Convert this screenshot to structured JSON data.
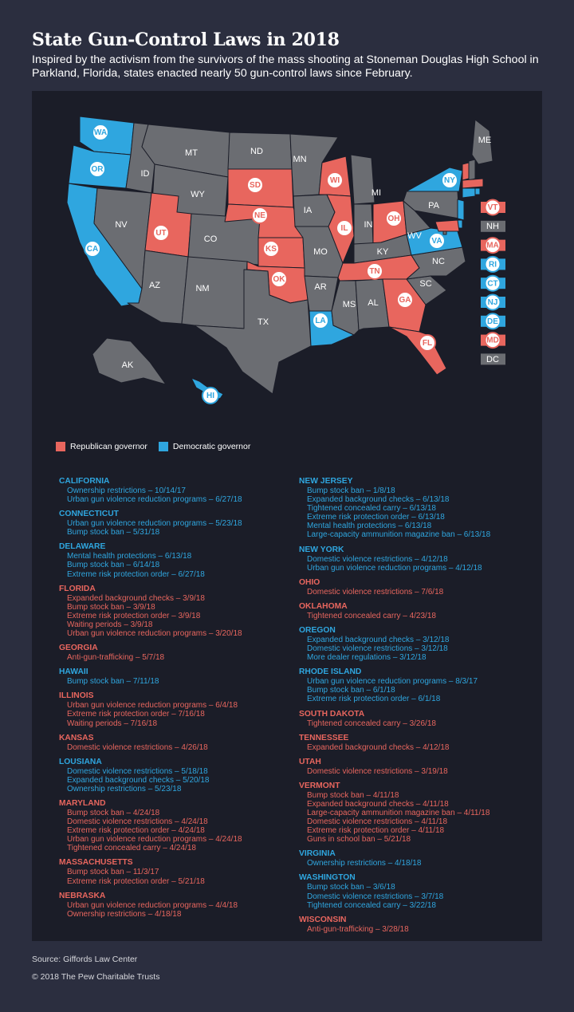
{
  "title": "State Gun-Control Laws in 2018",
  "subtitle": "Inspired by the activism from the survivors of the mass shooting at Stoneman Douglas High School in Parkland, Florida, states enacted nearly 50 gun-control laws since February.",
  "colors": {
    "republican": "#e8665e",
    "democratic": "#2fa6df",
    "no_law": "#6b6d72",
    "panel": "#1b1d28",
    "background": "#2b2e3f"
  },
  "legend": {
    "republican": "Republican governor",
    "democratic": "Democratic governor"
  },
  "map": {
    "states": [
      {
        "abbr": "WA",
        "party": "dem"
      },
      {
        "abbr": "OR",
        "party": "dem"
      },
      {
        "abbr": "CA",
        "party": "dem"
      },
      {
        "abbr": "ID",
        "party": "none"
      },
      {
        "abbr": "MT",
        "party": "none"
      },
      {
        "abbr": "WY",
        "party": "none"
      },
      {
        "abbr": "NV",
        "party": "none"
      },
      {
        "abbr": "UT",
        "party": "rep"
      },
      {
        "abbr": "CO",
        "party": "none"
      },
      {
        "abbr": "AZ",
        "party": "none"
      },
      {
        "abbr": "NM",
        "party": "none"
      },
      {
        "abbr": "ND",
        "party": "none"
      },
      {
        "abbr": "SD",
        "party": "rep"
      },
      {
        "abbr": "NE",
        "party": "rep"
      },
      {
        "abbr": "KS",
        "party": "rep"
      },
      {
        "abbr": "OK",
        "party": "rep"
      },
      {
        "abbr": "TX",
        "party": "none"
      },
      {
        "abbr": "MN",
        "party": "none"
      },
      {
        "abbr": "IA",
        "party": "none"
      },
      {
        "abbr": "MO",
        "party": "none"
      },
      {
        "abbr": "AR",
        "party": "none"
      },
      {
        "abbr": "LA",
        "party": "dem"
      },
      {
        "abbr": "WI",
        "party": "rep"
      },
      {
        "abbr": "IL",
        "party": "rep"
      },
      {
        "abbr": "MI",
        "party": "none"
      },
      {
        "abbr": "IN",
        "party": "none"
      },
      {
        "abbr": "OH",
        "party": "rep"
      },
      {
        "abbr": "KY",
        "party": "none"
      },
      {
        "abbr": "TN",
        "party": "rep"
      },
      {
        "abbr": "MS",
        "party": "none"
      },
      {
        "abbr": "AL",
        "party": "none"
      },
      {
        "abbr": "GA",
        "party": "rep"
      },
      {
        "abbr": "FL",
        "party": "rep"
      },
      {
        "abbr": "SC",
        "party": "none"
      },
      {
        "abbr": "NC",
        "party": "none"
      },
      {
        "abbr": "VA",
        "party": "dem"
      },
      {
        "abbr": "WV",
        "party": "none"
      },
      {
        "abbr": "PA",
        "party": "none"
      },
      {
        "abbr": "NY",
        "party": "dem"
      },
      {
        "abbr": "ME",
        "party": "none"
      },
      {
        "abbr": "AK",
        "party": "none"
      },
      {
        "abbr": "HI",
        "party": "dem"
      }
    ],
    "small_states": [
      {
        "abbr": "VT",
        "party": "rep"
      },
      {
        "abbr": "NH",
        "party": "none"
      },
      {
        "abbr": "MA",
        "party": "rep"
      },
      {
        "abbr": "RI",
        "party": "dem"
      },
      {
        "abbr": "CT",
        "party": "dem"
      },
      {
        "abbr": "NJ",
        "party": "dem"
      },
      {
        "abbr": "DE",
        "party": "dem"
      },
      {
        "abbr": "MD",
        "party": "rep"
      },
      {
        "abbr": "DC",
        "party": "none"
      }
    ]
  },
  "laws_left": [
    {
      "state": "CALIFORNIA",
      "party": "dem",
      "laws": [
        "Ownership restrictions – 10/14/17",
        "Urban gun violence reduction programs – 6/27/18"
      ]
    },
    {
      "state": "CONNECTICUT",
      "party": "dem",
      "laws": [
        "Urban gun violence reduction programs – 5/23/18",
        "Bump stock ban – 5/31/18"
      ]
    },
    {
      "state": "DELAWARE",
      "party": "dem",
      "laws": [
        "Mental health protections – 6/13/18",
        "Bump stock ban – 6/14/18",
        "Extreme risk protection order – 6/27/18"
      ]
    },
    {
      "state": "FLORIDA",
      "party": "rep",
      "laws": [
        "Expanded background checks – 3/9/18",
        "Bump stock ban – 3/9/18",
        "Extreme risk protection order – 3/9/18",
        "Waiting periods – 3/9/18",
        "Urban gun violence reduction programs – 3/20/18"
      ]
    },
    {
      "state": "GEORGIA",
      "party": "rep",
      "laws": [
        "Anti-gun-trafficking – 5/7/18"
      ]
    },
    {
      "state": "HAWAII",
      "party": "dem",
      "laws": [
        "Bump stock ban – 7/11/18"
      ]
    },
    {
      "state": "ILLINOIS",
      "party": "rep",
      "laws": [
        "Urban gun violence reduction programs – 6/4/18",
        "Extreme risk protection order – 7/16/18",
        "Waiting periods – 7/16/18"
      ]
    },
    {
      "state": "KANSAS",
      "party": "rep",
      "laws": [
        "Domestic violence restrictions – 4/26/18"
      ]
    },
    {
      "state": "LOUSIANA",
      "party": "dem",
      "laws": [
        "Domestic violence restrictions – 5/18/18",
        "Expanded background checks – 5/20/18",
        "Ownership restrictions – 5/23/18"
      ]
    },
    {
      "state": "MARYLAND",
      "party": "rep",
      "laws": [
        "Bump stock ban – 4/24/18",
        "Domestic violence restrictions – 4/24/18",
        "Extreme risk protection order – 4/24/18",
        "Urban gun violence reduction programs – 4/24/18",
        "Tightened concealed carry – 4/24/18"
      ]
    },
    {
      "state": "MASSACHUSETTS",
      "party": "rep",
      "laws": [
        "Bump stock ban – 11/3/17",
        "Extreme risk protection order – 5/21/18"
      ]
    },
    {
      "state": "NEBRASKA",
      "party": "rep",
      "laws": [
        "Urban gun violence reduction programs – 4/4/18",
        "Ownership restrictions – 4/18/18"
      ]
    }
  ],
  "laws_right": [
    {
      "state": "NEW JERSEY",
      "party": "dem",
      "laws": [
        "Bump stock ban – 1/8/18",
        "Expanded background checks – 6/13/18",
        "Tightened concealed carry – 6/13/18",
        "Extreme risk protection order – 6/13/18",
        "Mental health protections – 6/13/18",
        "Large-capacity ammunition magazine ban – 6/13/18"
      ]
    },
    {
      "state": "NEW YORK",
      "party": "dem",
      "laws": [
        "Domestic violence restrictions – 4/12/18",
        "Urban gun violence reduction programs – 4/12/18"
      ]
    },
    {
      "state": "OHIO",
      "party": "rep",
      "laws": [
        "Domestic violence restrictions – 7/6/18"
      ]
    },
    {
      "state": "OKLAHOMA",
      "party": "rep",
      "laws": [
        "Tightened concealed carry – 4/23/18"
      ]
    },
    {
      "state": "OREGON",
      "party": "dem",
      "laws": [
        "Expanded background checks – 3/12/18",
        "Domestic violence restrictions – 3/12/18",
        "More dealer regulations – 3/12/18"
      ]
    },
    {
      "state": "RHODE ISLAND",
      "party": "dem",
      "laws": [
        "Urban gun violence reduction programs – 8/3/17",
        "Bump stock ban – 6/1/18",
        "Extreme risk protection order – 6/1/18"
      ]
    },
    {
      "state": "SOUTH DAKOTA",
      "party": "rep",
      "laws": [
        "Tightened concealed carry – 3/26/18"
      ]
    },
    {
      "state": "TENNESSEE",
      "party": "rep",
      "laws": [
        "Expanded background checks – 4/12/18"
      ]
    },
    {
      "state": "UTAH",
      "party": "rep",
      "laws": [
        "Domestic violence restrictions – 3/19/18"
      ]
    },
    {
      "state": "VERMONT",
      "party": "rep",
      "laws": [
        "Bump stock ban – 4/11/18",
        "Expanded background checks – 4/11/18",
        "Large-capacity ammunition magazine ban – 4/11/18",
        "Domestic violence restrictions – 4/11/18",
        "Extreme risk protection order – 4/11/18",
        "Guns in school ban – 5/21/18"
      ]
    },
    {
      "state": "VIRGINIA",
      "party": "dem",
      "laws": [
        "Ownership restrictions – 4/18/18"
      ]
    },
    {
      "state": "WASHINGTON",
      "party": "dem",
      "laws": [
        "Bump stock ban – 3/6/18",
        "Domestic violence restrictions – 3/7/18",
        "Tightened concealed carry – 3/22/18"
      ]
    },
    {
      "state": "WISCONSIN",
      "party": "rep",
      "laws": [
        "Anti-gun-trafficking – 3/28/18"
      ]
    }
  ],
  "source": "Source: Giffords Law Center",
  "copyright": "© 2018 The Pew Charitable Trusts"
}
